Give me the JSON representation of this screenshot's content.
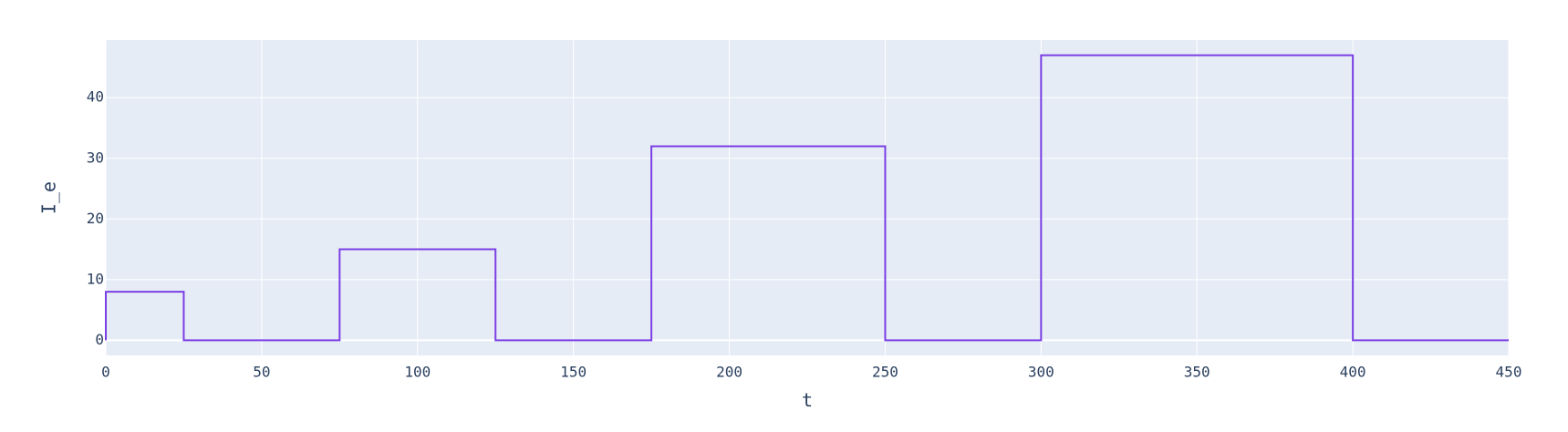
{
  "chart_data": {
    "type": "line",
    "line_shape": "step",
    "xlabel": "t",
    "ylabel": "I_e",
    "xlim": [
      0,
      450
    ],
    "ylim": [
      -2.5,
      49.5
    ],
    "xticks": [
      0,
      50,
      100,
      150,
      200,
      250,
      300,
      350,
      400,
      450
    ],
    "yticks": [
      0,
      10,
      20,
      30,
      40
    ],
    "grid": true,
    "legend": "none",
    "series": [
      {
        "color": "#7b3fe4",
        "x": [
          0,
          0,
          25,
          25,
          75,
          75,
          125,
          125,
          175,
          175,
          250,
          250,
          300,
          300,
          400,
          400,
          450
        ],
        "y": [
          0,
          8,
          8,
          0,
          0,
          15,
          15,
          0,
          0,
          32,
          32,
          0,
          0,
          47,
          47,
          0,
          0
        ]
      }
    ]
  },
  "colors": {
    "plot_background": "#e5ecf6",
    "gridline": "#ffffff",
    "text": "#2a3f5f"
  }
}
